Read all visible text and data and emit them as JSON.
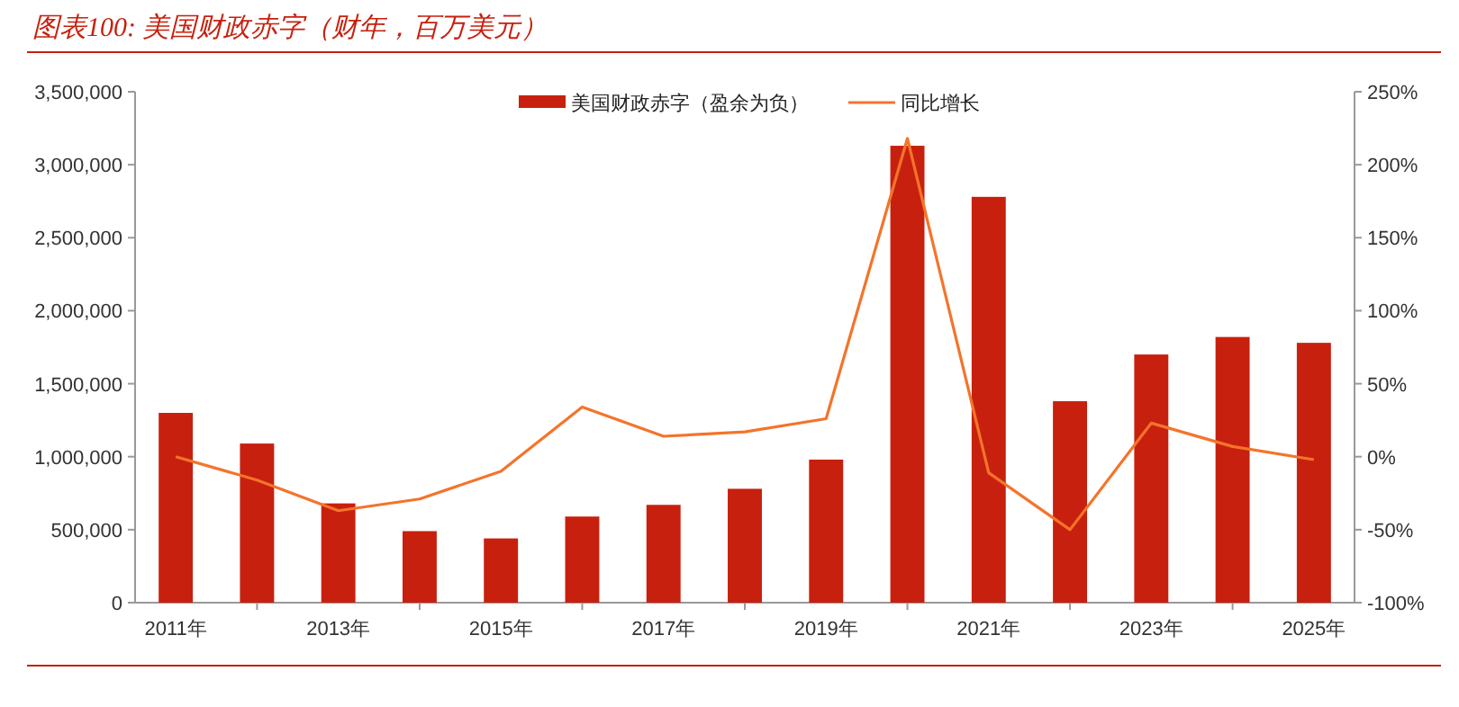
{
  "chart_data": {
    "type": "bar",
    "title": "图表100:  美国财政赤字（财年，百万美元）",
    "categories": [
      "2011年",
      null,
      "2013年",
      null,
      "2015年",
      null,
      "2017年",
      null,
      "2019年",
      null,
      "2021年",
      null,
      "2023年",
      null,
      "2025年"
    ],
    "series": [
      {
        "name": "美国财政赤字（盈余为负）",
        "color": "#c8200e",
        "values": [
          1300000,
          1090000,
          680000,
          490000,
          440000,
          590000,
          670000,
          780000,
          980000,
          3130000,
          2780000,
          1380000,
          1700000,
          1820000,
          1780000
        ]
      },
      {
        "name": "同比增长",
        "type": "line",
        "axis": "y2",
        "color": "#f4742b",
        "values": [
          0,
          -16,
          -37,
          -29,
          -10,
          34,
          14,
          17,
          26,
          218,
          -11,
          -50,
          23,
          7,
          -2
        ]
      }
    ],
    "ylim": [
      0,
      3500000
    ],
    "yticks": [
      {
        "value": 0,
        "label": "0"
      },
      {
        "value": 500000,
        "label": "500,000"
      },
      {
        "value": 1000000,
        "label": "1,000,000"
      },
      {
        "value": 1500000,
        "label": "1,500,000"
      },
      {
        "value": 2000000,
        "label": "2,000,000"
      },
      {
        "value": 2500000,
        "label": "2,500,000"
      },
      {
        "value": 3000000,
        "label": "3,000,000"
      },
      {
        "value": 3500000,
        "label": "3,500,000"
      }
    ],
    "y2lim": [
      -100,
      250
    ],
    "y2ticks": [
      {
        "value": -100,
        "label": "-100%"
      },
      {
        "value": -50,
        "label": "-50%"
      },
      {
        "value": 0,
        "label": "0%"
      },
      {
        "value": 50,
        "label": "50%"
      },
      {
        "value": 100,
        "label": "100%"
      },
      {
        "value": 150,
        "label": "150%"
      },
      {
        "value": 200,
        "label": "200%"
      },
      {
        "value": 250,
        "label": "250%"
      }
    ],
    "grid": false,
    "legend": "top",
    "marker": "none",
    "line_style": "solid"
  }
}
